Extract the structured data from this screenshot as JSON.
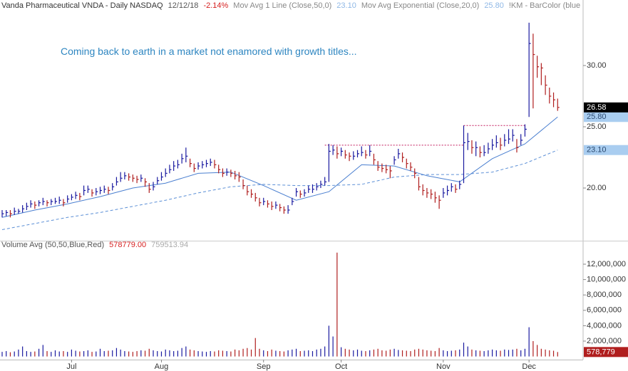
{
  "chart_data": [
    {
      "type": "ohlc",
      "title": "Vanda Pharmaceutical  VNDA - Daily  NASDAQ",
      "date": "12/12/18",
      "change": "-2.14%",
      "indicator": "!KM - BarColor (blue",
      "annotation": "Coming back to earth in a market not enamored with growth titles...",
      "up_color": "#1a1aa0",
      "down_color": "#b01e1e",
      "categories": [
        null,
        null,
        null,
        null,
        null,
        null,
        null,
        null,
        null,
        null,
        null,
        null,
        null,
        null,
        null,
        null,
        null,
        "Jul",
        null,
        null,
        null,
        null,
        null,
        null,
        null,
        null,
        null,
        null,
        null,
        null,
        null,
        null,
        null,
        null,
        null,
        null,
        null,
        null,
        null,
        "Aug",
        null,
        null,
        null,
        null,
        null,
        null,
        null,
        null,
        null,
        null,
        null,
        null,
        null,
        null,
        null,
        null,
        null,
        null,
        null,
        null,
        null,
        null,
        null,
        null,
        "Sep",
        null,
        null,
        null,
        null,
        null,
        null,
        null,
        null,
        null,
        null,
        null,
        null,
        null,
        null,
        null,
        null,
        null,
        null,
        "Oct",
        null,
        null,
        null,
        null,
        null,
        null,
        null,
        null,
        null,
        null,
        null,
        null,
        null,
        null,
        null,
        null,
        null,
        null,
        null,
        null,
        null,
        null,
        null,
        null,
        "Nov",
        null,
        null,
        null,
        null,
        null,
        null,
        null,
        null,
        null,
        null,
        null,
        null,
        null,
        null,
        null,
        null,
        null,
        null,
        null,
        null,
        "Dec",
        null,
        null,
        null,
        null,
        null,
        null,
        null
      ],
      "high": [
        18.2,
        18.2,
        18.2,
        18.4,
        18.3,
        18.6,
        18.8,
        19.0,
        18.9,
        19.0,
        19.2,
        19.0,
        19.1,
        19.2,
        19.3,
        19.1,
        19.4,
        19.5,
        19.7,
        19.6,
        20.2,
        20.2,
        19.9,
        20.0,
        20.1,
        20.2,
        20.1,
        20.4,
        20.9,
        21.3,
        21.3,
        21.2,
        21.1,
        21.0,
        21.1,
        20.8,
        20.4,
        20.5,
        20.9,
        21.3,
        21.6,
        21.9,
        22.2,
        22.3,
        22.8,
        23.3,
        22.4,
        22.0,
        22.1,
        22.2,
        22.3,
        22.4,
        22.3,
        21.9,
        21.6,
        21.6,
        21.5,
        21.4,
        21.3,
        20.7,
        20.2,
        19.9,
        19.6,
        19.2,
        19.2,
        19.0,
        18.9,
        18.9,
        18.7,
        18.5,
        18.6,
        19.2,
        20.0,
        19.8,
        19.9,
        20.2,
        20.3,
        20.4,
        20.6,
        20.9,
        23.6,
        23.5,
        23.4,
        23.3,
        23.1,
        22.9,
        23.0,
        23.1,
        23.4,
        23.1,
        23.5,
        22.8,
        22.2,
        22.0,
        21.9,
        21.8,
        22.6,
        23.2,
        22.9,
        22.4,
        22.1,
        21.6,
        20.9,
        20.3,
        20.0,
        19.9,
        19.7,
        19.4,
        20.0,
        20.2,
        20.4,
        20.3,
        20.6,
        25.1,
        24.5,
        23.9,
        23.8,
        23.4,
        23.5,
        23.7,
        24.0,
        24.3,
        24.1,
        24.4,
        24.8,
        24.8,
        24.0,
        24.4,
        25.2,
        33.5,
        32.6,
        30.8,
        30.2,
        29.2,
        28.2,
        27.8,
        27.3
      ],
      "low": [
        17.6,
        17.7,
        17.6,
        17.8,
        17.9,
        18.0,
        18.2,
        18.4,
        18.3,
        18.5,
        18.6,
        18.5,
        18.6,
        18.7,
        18.7,
        18.5,
        18.8,
        19.0,
        19.1,
        19.0,
        19.4,
        19.6,
        19.3,
        19.4,
        19.5,
        19.6,
        19.5,
        19.8,
        20.2,
        20.5,
        20.7,
        20.6,
        20.5,
        20.4,
        20.5,
        20.1,
        19.6,
        19.8,
        20.3,
        20.6,
        20.9,
        21.2,
        21.4,
        21.6,
        22.0,
        22.1,
        21.7,
        21.3,
        21.5,
        21.6,
        21.7,
        21.8,
        21.6,
        21.2,
        20.9,
        21.0,
        20.9,
        20.7,
        20.5,
        19.9,
        19.4,
        19.2,
        18.9,
        18.5,
        18.6,
        18.4,
        18.2,
        18.3,
        18.1,
        17.9,
        17.9,
        18.6,
        19.3,
        19.2,
        19.3,
        19.6,
        19.6,
        19.8,
        20.0,
        20.2,
        20.5,
        22.7,
        22.4,
        22.6,
        22.4,
        22.2,
        22.3,
        22.5,
        22.6,
        22.4,
        22.6,
        21.9,
        21.4,
        21.3,
        21.2,
        20.8,
        21.9,
        22.4,
        22.1,
        21.6,
        21.4,
        20.8,
        19.8,
        19.4,
        19.2,
        19.1,
        18.8,
        18.3,
        19.2,
        19.4,
        19.7,
        19.6,
        19.9,
        20.4,
        23.1,
        22.8,
        22.6,
        22.5,
        22.6,
        22.8,
        23.1,
        23.3,
        23.1,
        23.4,
        23.6,
        23.8,
        22.9,
        23.5,
        24.2,
        25.8,
        26.5,
        29.0,
        28.4,
        27.6,
        26.9,
        26.6,
        26.3
      ],
      "close": [
        17.9,
        18.0,
        17.9,
        18.1,
        18.1,
        18.3,
        18.5,
        18.7,
        18.6,
        18.8,
        18.9,
        18.8,
        18.9,
        18.9,
        19.0,
        18.8,
        19.1,
        19.25,
        19.4,
        19.3,
        19.8,
        19.9,
        19.6,
        19.7,
        19.8,
        19.9,
        19.8,
        20.1,
        20.5,
        20.8,
        21.0,
        20.9,
        20.8,
        20.7,
        20.8,
        20.5,
        19.9,
        20.1,
        20.6,
        20.9,
        21.2,
        21.5,
        21.8,
        21.9,
        22.4,
        22.6,
        22.0,
        21.6,
        21.8,
        21.9,
        22.0,
        22.1,
        21.9,
        21.5,
        21.2,
        21.3,
        21.2,
        21.0,
        20.9,
        20.2,
        19.7,
        19.5,
        19.2,
        18.8,
        18.9,
        18.7,
        18.5,
        18.6,
        18.4,
        18.2,
        18.2,
        18.9,
        19.7,
        19.5,
        19.6,
        19.9,
        19.9,
        20.1,
        20.3,
        20.5,
        23.0,
        23.1,
        22.8,
        23.0,
        22.7,
        22.6,
        22.6,
        22.8,
        22.9,
        22.7,
        23.0,
        22.3,
        21.7,
        21.6,
        21.5,
        21.4,
        22.3,
        22.8,
        22.5,
        22.0,
        21.7,
        21.2,
        20.1,
        19.8,
        19.6,
        19.5,
        19.2,
        19.0,
        19.6,
        19.8,
        20.1,
        19.9,
        20.3,
        23.7,
        23.8,
        23.3,
        23.3,
        22.9,
        22.9,
        23.2,
        23.5,
        23.7,
        23.5,
        23.9,
        24.0,
        24.3,
        23.3,
        23.9,
        24.8,
        31.8,
        30.9,
        29.9,
        29.8,
        28.4,
        27.5,
        27.2,
        26.58
      ],
      "series": [
        {
          "name": "Mov Avg 1 Line (Close,50,0)",
          "color": "#5b8fd6",
          "dash": true,
          "last_label": "23.10",
          "x": [
            0,
            8,
            16,
            24,
            32,
            40,
            48,
            56,
            64,
            72,
            80,
            88,
            96,
            104,
            112,
            120,
            128,
            136
          ],
          "values": [
            16.6,
            17.1,
            17.6,
            18.0,
            18.5,
            19.0,
            19.6,
            20.1,
            20.3,
            20.2,
            20.2,
            20.3,
            20.9,
            21.1,
            21.1,
            21.3,
            22.0,
            23.1
          ]
        },
        {
          "name": "Mov Avg Exponential (Close,20,0)",
          "color": "#4a7fd0",
          "dash": false,
          "last_label": "25.80",
          "x": [
            0,
            8,
            16,
            24,
            32,
            40,
            48,
            56,
            64,
            72,
            80,
            88,
            96,
            104,
            112,
            120,
            128,
            136
          ],
          "values": [
            17.6,
            18.2,
            18.7,
            19.3,
            20.0,
            20.4,
            21.2,
            21.3,
            20.2,
            19.0,
            19.7,
            21.9,
            21.8,
            21.0,
            20.5,
            22.4,
            23.6,
            25.8
          ]
        }
      ],
      "levels": [
        {
          "value": 23.5,
          "from": 79,
          "to": 113
        },
        {
          "value": 25.1,
          "from": 113,
          "to": 128
        }
      ],
      "level_color": "#c2185b",
      "ylim": [
        15.7,
        35.35
      ],
      "yticks": [
        {
          "value": 20,
          "label": "20.00"
        },
        {
          "value": 25,
          "label": "25.00"
        },
        {
          "value": 30,
          "label": "30.00"
        }
      ]
    },
    {
      "type": "bar",
      "title": "Volume Avg (50,50,Blue,Red)",
      "avg_labels": [
        "578779.00",
        "759513.94"
      ],
      "last_label": "578,779",
      "values": [
        600000,
        700000,
        550000,
        650000,
        900000,
        1300000,
        700000,
        600000,
        650000,
        1000000,
        1500000,
        700000,
        600000,
        800000,
        650000,
        700000,
        600000,
        900000,
        750000,
        650000,
        700000,
        800000,
        600000,
        650000,
        1000000,
        700000,
        750000,
        800000,
        1100000,
        900000,
        700000,
        650000,
        600000,
        700000,
        800000,
        750000,
        1000000,
        800000,
        700000,
        650000,
        900000,
        800000,
        700000,
        750000,
        1100000,
        1300000,
        900000,
        800000,
        700000,
        650000,
        600000,
        700000,
        650000,
        800000,
        750000,
        700000,
        650000,
        900000,
        800000,
        1000000,
        1100000,
        900000,
        2400000,
        1000000,
        800000,
        700000,
        900000,
        750000,
        700000,
        650000,
        800000,
        900000,
        1000000,
        700000,
        750000,
        800000,
        700000,
        900000,
        1000000,
        1300000,
        4000000,
        2600000,
        13500000,
        1200000,
        1000000,
        900000,
        800000,
        900000,
        750000,
        700000,
        800000,
        900000,
        1000000,
        800000,
        750000,
        900000,
        1000000,
        850000,
        800000,
        750000,
        700000,
        900000,
        1000000,
        900000,
        800000,
        750000,
        700000,
        1100000,
        800000,
        700000,
        750000,
        800000,
        900000,
        1800000,
        1300000,
        900000,
        800000,
        750000,
        700000,
        800000,
        900000,
        800000,
        750000,
        900000,
        850000,
        900000,
        1000000,
        800000,
        1000000,
        3800000,
        2000000,
        1500000,
        1000000,
        900000,
        800000,
        750000,
        578779
      ],
      "ylim": [
        0,
        14870000
      ],
      "yticks": [
        {
          "value": 2000000,
          "label": "2,000,000"
        },
        {
          "value": 4000000,
          "label": "4,000,000"
        },
        {
          "value": 6000000,
          "label": "6,000,000"
        },
        {
          "value": 8000000,
          "label": "8,000,000"
        },
        {
          "value": 10000000,
          "label": "10,000,000"
        },
        {
          "value": 12000000,
          "label": "12,000,000"
        }
      ]
    }
  ]
}
